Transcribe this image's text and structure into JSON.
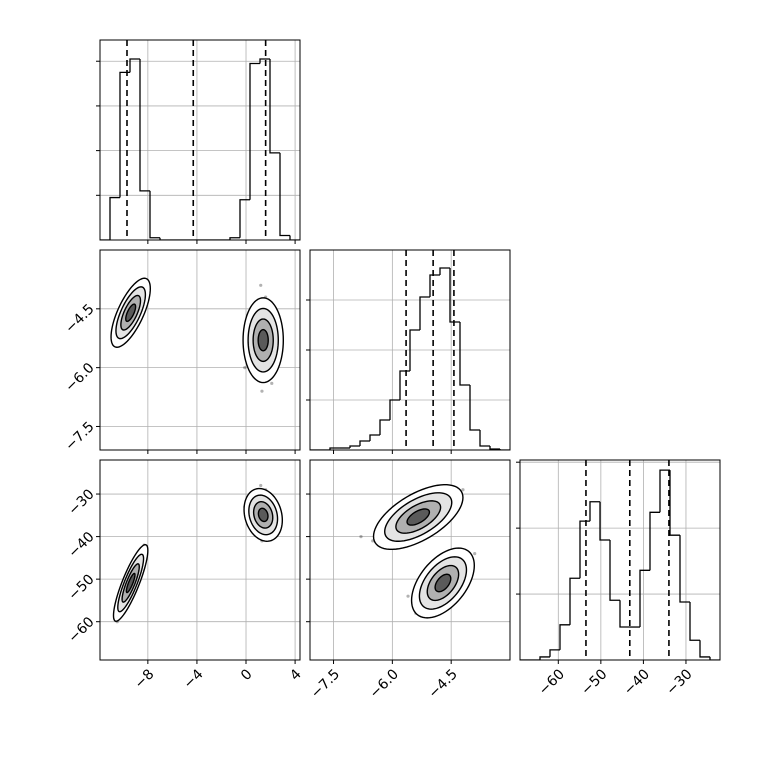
{
  "chart_data": [
    {
      "type": "histogram",
      "color": "#000000",
      "grid": true,
      "bins": [
        -11.9,
        -11.085,
        -10.27,
        -9.455,
        -8.64,
        -7.825,
        -7.01,
        -6.195,
        -5.38,
        -4.565,
        -3.75,
        -2.935,
        -2.12,
        -1.305,
        -0.49,
        0.325,
        1.14,
        1.955,
        2.77,
        3.585,
        4.4
      ],
      "values": [
        0,
        190,
        750,
        810,
        220,
        10,
        0,
        0,
        0,
        0,
        0,
        0,
        0,
        10,
        180,
        790,
        810,
        390,
        20,
        0
      ],
      "quantiles": [
        -9.7,
        -4.3,
        1.6
      ],
      "xlim": [
        -11.9,
        4.4
      ],
      "xticks": [
        -8,
        -4,
        0,
        4
      ],
      "ylim": [
        0,
        895
      ],
      "yticks": [
        200,
        400,
        600,
        800
      ]
    },
    {
      "type": "scatter",
      "color": "#000000",
      "grid": true,
      "x": [
        -10.2,
        -9.8,
        -9.0,
        -8.6,
        -10.5,
        -8.9,
        -9.7,
        -10.8,
        -8.3,
        -9.5,
        -9.1,
        -10.0,
        0.5,
        2.2,
        1.0,
        1.9,
        0.2,
        2.6,
        1.3,
        1.6,
        0.8,
        2.1,
        1.2,
        -0.1
      ],
      "y": [
        -5.2,
        -4.9,
        -4.3,
        -4.0,
        -5.0,
        -4.6,
        -4.3,
        -5.4,
        -3.8,
        -5.1,
        -4.0,
        -4.7,
        -4.5,
        -5.8,
        -6.2,
        -4.6,
        -5.5,
        -5.1,
        -6.6,
        -4.2,
        -5.9,
        -6.4,
        -3.9,
        -6.0
      ],
      "contours": [
        {
          "center": [
            -9.4,
            -4.6
          ],
          "sigma": [
            0.8,
            0.44
          ],
          "rho": 0.7
        },
        {
          "center": [
            1.4,
            -5.3
          ],
          "sigma": [
            0.82,
            0.54
          ],
          "rho": 0
        }
      ],
      "levels": [
        0.5,
        1,
        1.5,
        2
      ],
      "xlim": [
        -11.9,
        4.4
      ],
      "xticks": [
        -8,
        -4,
        0,
        4
      ],
      "ylim": [
        -8.1,
        -3.0
      ],
      "yticks": [
        {
          "value": -4.5,
          "label": "−4.5"
        },
        {
          "value": -6.0,
          "label": "−6.0"
        },
        {
          "value": -7.5,
          "label": "−7.5"
        }
      ]
    },
    {
      "type": "histogram",
      "color": "#000000",
      "grid": true,
      "bins": [
        -8.1,
        -7.845,
        -7.59,
        -7.335,
        -7.08,
        -6.825,
        -6.57,
        -6.315,
        -6.06,
        -5.805,
        -5.55,
        -5.295,
        -5.04,
        -4.785,
        -4.53,
        -4.275,
        -4.02,
        -3.765,
        -3.51,
        -3.255,
        -3.0
      ],
      "values": [
        0,
        0,
        8,
        8,
        16,
        36,
        60,
        120,
        200,
        316,
        480,
        612,
        700,
        728,
        512,
        260,
        80,
        16,
        4,
        0
      ],
      "quantiles": [
        -5.65,
        -4.96,
        -4.43
      ],
      "xlim": [
        -8.1,
        -3.0
      ],
      "xticks": [
        -7.5,
        -6.0,
        -4.5
      ],
      "ylim": [
        0,
        800
      ],
      "yticks": [
        200,
        400,
        600
      ]
    },
    {
      "type": "scatter",
      "color": "#000000",
      "grid": true,
      "x": [
        -10.2,
        -9.9,
        -9.0,
        -8.6,
        -10.5,
        -9.3,
        -8.8,
        -10.0,
        -8.3,
        -9.6,
        -9.2,
        -10.7,
        0.5,
        2.2,
        1.0,
        1.9,
        0.2,
        2.6,
        1.3,
        1.6,
        0.8,
        2.1,
        1.2,
        -0.1
      ],
      "y": [
        -57,
        -55,
        -47,
        -44,
        -60,
        -52,
        -49,
        -51,
        -42,
        -56,
        -46,
        -58,
        -31,
        -37,
        -39,
        -31,
        -35,
        -34,
        -41,
        -29,
        -37,
        -39,
        -28,
        -33
      ],
      "contours": [
        {
          "center": [
            -9.4,
            -50.9
          ],
          "sigma": [
            0.7,
            4.5
          ],
          "rho": 0.85
        },
        {
          "center": [
            1.4,
            -34.9
          ],
          "sigma": [
            0.78,
            3.1
          ],
          "rho": -0.2
        }
      ],
      "levels": [
        0.5,
        1,
        1.5,
        2
      ],
      "xlim": [
        -11.9,
        4.4
      ],
      "xticks": [
        {
          "value": -8,
          "label": "−8"
        },
        {
          "value": -4,
          "label": "−4"
        },
        0,
        4
      ],
      "ylim": [
        -69,
        -22
      ],
      "yticks": [
        {
          "value": -30,
          "label": "−30"
        },
        {
          "value": -40,
          "label": "−40"
        },
        {
          "value": -50,
          "label": "−50"
        },
        {
          "value": -60,
          "label": "−60"
        }
      ]
    },
    {
      "type": "scatter",
      "color": "#000000",
      "grid": true,
      "x": [
        -6.2,
        -5.8,
        -4.8,
        -4.4,
        -6.5,
        -5.3,
        -5.0,
        -5.7,
        -4.2,
        -6.0,
        -5.5,
        -6.8,
        -5.2,
        -4.9,
        -4.3,
        -4.1,
        -5.4,
        -4.6,
        -4.4,
        -5.0,
        -3.9,
        -4.8,
        -4.5,
        -5.6
      ],
      "y": [
        -39,
        -38,
        -33,
        -31,
        -41,
        -36,
        -37,
        -34,
        -29,
        -36,
        -32,
        -40,
        -55,
        -53,
        -47,
        -45,
        -58,
        -50,
        -52,
        -49,
        -44,
        -56,
        -46,
        -54
      ],
      "contours": [
        {
          "center": [
            -5.34,
            -35.4
          ],
          "sigma": [
            0.57,
            3.8
          ],
          "rho": 0.6
        },
        {
          "center": [
            -4.71,
            -50.9
          ],
          "sigma": [
            0.4,
            4.1
          ],
          "rho": 0.5
        }
      ],
      "levels": [
        0.5,
        1,
        1.5,
        2
      ],
      "xlim": [
        -8.1,
        -3.0
      ],
      "xticks": [
        {
          "value": -7.5,
          "label": "−7.5"
        },
        {
          "value": -6.0,
          "label": "−6.0"
        },
        {
          "value": -4.5,
          "label": "−4.5"
        }
      ],
      "ylim": [
        -69,
        -22
      ],
      "yticks": [
        -30,
        -40,
        -50,
        -60
      ]
    },
    {
      "type": "histogram",
      "color": "#000000",
      "grid": true,
      "bins": [
        -69,
        -66.65,
        -64.3,
        -61.95,
        -59.6,
        -57.25,
        -54.9,
        -52.55,
        -50.2,
        -47.85,
        -45.5,
        -43.15,
        -40.8,
        -38.45,
        -36.1,
        -33.75,
        -31.4,
        -29.05,
        -26.7,
        -24.35,
        -22
      ],
      "values": [
        0,
        0,
        7,
        23,
        80,
        186,
        316,
        360,
        273,
        136,
        75,
        75,
        204,
        336,
        432,
        284,
        132,
        45,
        7,
        0
      ],
      "quantiles": [
        -53.5,
        -43.2,
        -34.0
      ],
      "xlim": [
        -69,
        -22
      ],
      "xticks": [
        {
          "value": -60,
          "label": "−60"
        },
        {
          "value": -50,
          "label": "−50"
        },
        {
          "value": -40,
          "label": "−40"
        },
        {
          "value": -30,
          "label": "−30"
        }
      ],
      "ylim": [
        0,
        455
      ],
      "yticks": [
        150,
        300,
        450
      ]
    }
  ]
}
